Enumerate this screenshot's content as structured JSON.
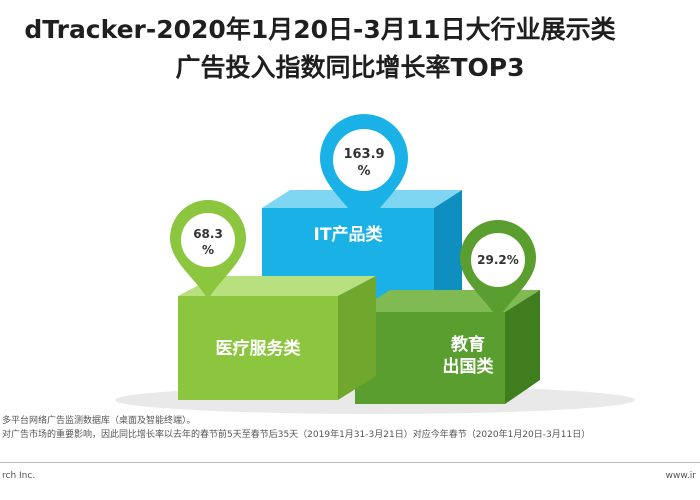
{
  "title_line1": "dTracker-2020年1月20日-3月11日大行业展示类",
  "title_line2": "广告投入指数同比增长率TOP3",
  "chart_data": {
    "type": "bar",
    "title": "dTracker-2020年1月20日-3月11日大行业展示类广告投入指数同比增长率TOP3",
    "categories": [
      "医疗服务类",
      "IT产品类",
      "教育出国类"
    ],
    "values": [
      68.3,
      163.9,
      29.2
    ],
    "value_labels": [
      "68.3 %",
      "163.9 %",
      "29.2%"
    ],
    "unit": "%",
    "colors": {
      "medical": "#8cc63f",
      "it": "#1ab2e6",
      "edu": "#5a9e2f"
    }
  },
  "notes": [
    "多平台网络广告监测数据库（桌面及智能终端）。",
    "对广告市场的重要影响，因此同比增长率以去年的春节前5天至春节后35天（2019年1月31-3月21日）对应今年春节（2020年1月20日-3月11日）"
  ],
  "source_left": "rch Inc.",
  "source_right": "www.ir"
}
